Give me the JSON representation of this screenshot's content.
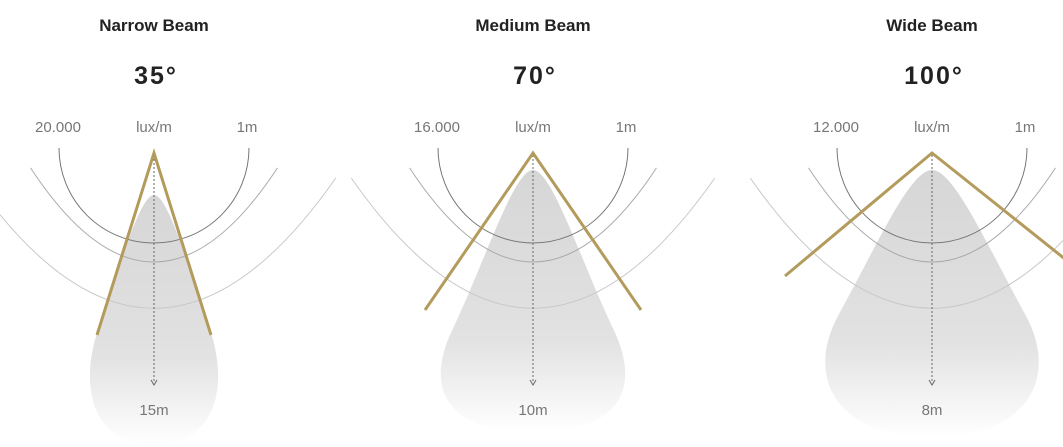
{
  "panels": [
    {
      "title": "Narrow Beam",
      "angle": "35°",
      "lux": "20.000",
      "unit": "lux/m",
      "ref": "1m",
      "distance": "15m"
    },
    {
      "title": "Medium Beam",
      "angle": "70°",
      "lux": "16.000",
      "unit": "lux/m",
      "ref": "1m",
      "distance": "10m"
    },
    {
      "title": "Wide Beam",
      "angle": "100°",
      "lux": "12.000",
      "unit": "lux/m",
      "ref": "1m",
      "distance": "8m"
    }
  ]
}
